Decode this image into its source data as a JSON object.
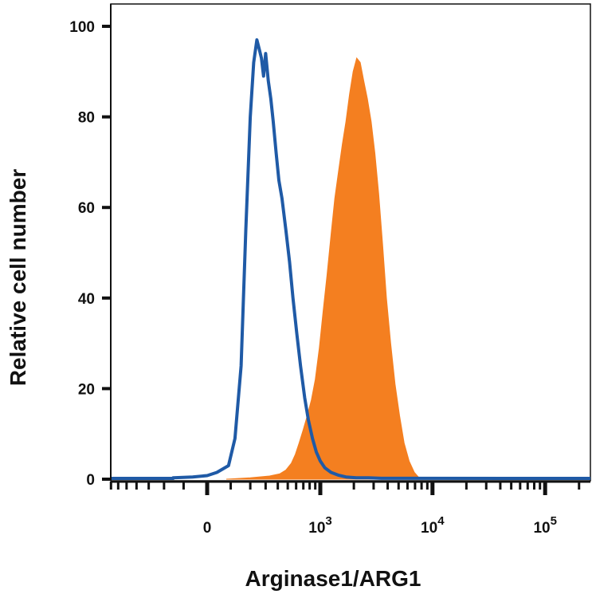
{
  "chart_data": {
    "type": "area",
    "title": "",
    "xlabel": "Arginase1/ARG1",
    "ylabel": "Relative cell number",
    "x_scale": "biexponential (logicle)",
    "xlim": [
      -1000,
      200000
    ],
    "ylim": [
      0,
      100
    ],
    "grid": false,
    "legend": "none",
    "y_ticks": [
      {
        "value": 0,
        "label": "0"
      },
      {
        "value": 20,
        "label": "20"
      },
      {
        "value": 40,
        "label": "40"
      },
      {
        "value": 60,
        "label": "60"
      },
      {
        "value": 80,
        "label": "80"
      },
      {
        "value": 100,
        "label": "100"
      }
    ],
    "x_ticks": [
      {
        "value": 0,
        "label": "0",
        "exp": ""
      },
      {
        "value": 1000,
        "label": "10",
        "exp": "3"
      },
      {
        "value": 10000,
        "label": "10",
        "exp": "4"
      },
      {
        "value": 100000,
        "label": "10",
        "exp": "5"
      }
    ],
    "series": [
      {
        "kind": "filled",
        "color": "#F47F20",
        "x": [
          80,
          200,
          330,
          420,
          480,
          540,
          590,
          640,
          700,
          760,
          830,
          900,
          980,
          1060,
          1150,
          1250,
          1350,
          1460,
          1580,
          1700,
          1830,
          1970,
          2120,
          2280,
          2450,
          2640,
          2850,
          3080,
          3330,
          3600,
          3900,
          4250,
          4650,
          5100,
          5600,
          6200,
          6900,
          7800
        ],
        "y": [
          0,
          0.3,
          0.7,
          1.2,
          2,
          3.5,
          5.5,
          8,
          11,
          14,
          17.5,
          22,
          29,
          37,
          45,
          54,
          62,
          68,
          74,
          79,
          85,
          90,
          93,
          92,
          88,
          84,
          79,
          72,
          63,
          52,
          40,
          30,
          21,
          14,
          8,
          4,
          1.5,
          0
        ]
      },
      {
        "kind": "outline",
        "color": "#1F5AA6",
        "x": [
          -150,
          -60,
          0,
          40,
          90,
          120,
          150,
          175,
          200,
          220,
          240,
          255,
          270,
          285,
          300,
          320,
          340,
          360,
          385,
          410,
          440,
          480,
          520,
          560,
          610,
          660,
          720,
          780,
          850,
          920,
          1000,
          1100,
          1250,
          1450,
          1700,
          2100,
          2700,
          3500
        ],
        "y": [
          0.3,
          0.5,
          0.8,
          1.5,
          3,
          9,
          25,
          55,
          80,
          92,
          97,
          95,
          93,
          89,
          94,
          88,
          84,
          79,
          72,
          66,
          62,
          55,
          48,
          40,
          32,
          25,
          18,
          13,
          9,
          6,
          4,
          2.5,
          1.5,
          0.9,
          0.5,
          0.3,
          0.3,
          0.2
        ]
      }
    ]
  }
}
